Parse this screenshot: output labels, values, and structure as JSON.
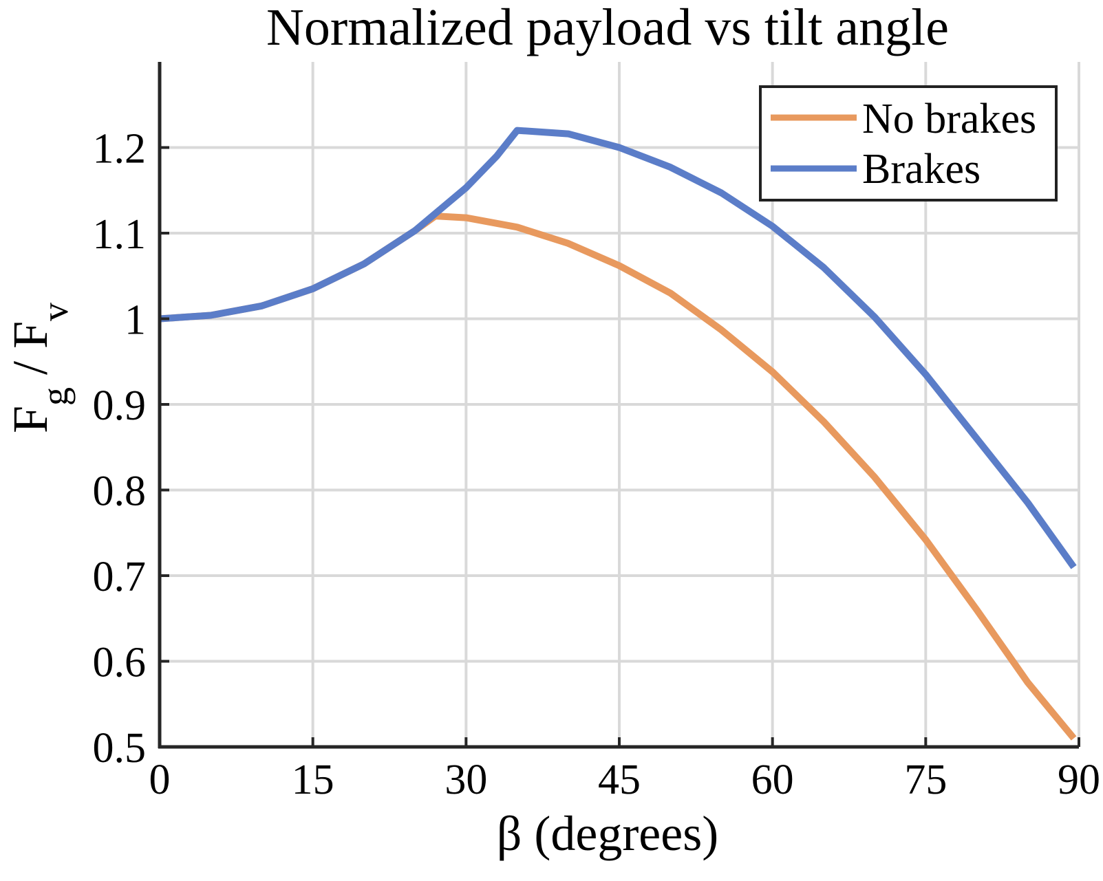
{
  "chart_data": {
    "type": "line",
    "title": "Normalized payload vs tilt angle",
    "xlabel": "β (degrees)",
    "ylabel": {
      "main1": "F",
      "sub1": "g",
      "sep": " / ",
      "main2": "F",
      "sub2": "v"
    },
    "xlim": [
      0,
      90
    ],
    "ylim": [
      0.5,
      1.3
    ],
    "xticks": [
      0,
      15,
      30,
      45,
      60,
      75,
      90
    ],
    "xtick_labels": [
      "0",
      "15",
      "30",
      "45",
      "60",
      "75",
      "90"
    ],
    "yticks": [
      0.5,
      0.6,
      0.7,
      0.8,
      0.9,
      1.0,
      1.1,
      1.2
    ],
    "ytick_labels": [
      "0.5",
      "0.6",
      "0.7",
      "0.8",
      "0.9",
      "1",
      "1.1",
      "1.2"
    ],
    "grid": true,
    "legend_position": "top-right",
    "series": [
      {
        "name": "No brakes",
        "color": "#E8995E",
        "x": [
          0,
          5,
          10,
          15,
          20,
          25,
          27,
          30,
          35,
          40,
          45,
          50,
          55,
          60,
          65,
          70,
          75,
          80,
          85,
          89.5
        ],
        "y": [
          1.0,
          1.004,
          1.015,
          1.035,
          1.064,
          1.103,
          1.12,
          1.118,
          1.107,
          1.088,
          1.062,
          1.03,
          0.987,
          0.938,
          0.88,
          0.815,
          0.742,
          0.66,
          0.575,
          0.51
        ]
      },
      {
        "name": "Brakes",
        "color": "#5B7DC8",
        "x": [
          0,
          5,
          10,
          15,
          20,
          25,
          30,
          33,
          35,
          40,
          45,
          50,
          55,
          60,
          65,
          70,
          75,
          80,
          85,
          89.5
        ],
        "y": [
          1.0,
          1.004,
          1.015,
          1.035,
          1.064,
          1.103,
          1.153,
          1.19,
          1.22,
          1.216,
          1.2,
          1.177,
          1.147,
          1.108,
          1.06,
          1.002,
          0.935,
          0.86,
          0.785,
          0.71
        ]
      }
    ]
  }
}
